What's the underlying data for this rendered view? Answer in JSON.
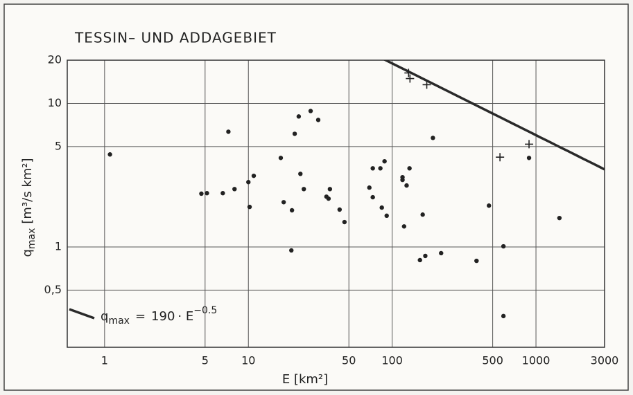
{
  "chart_data": {
    "type": "scatter",
    "title": "TESSIN– UND ADDAGEBIET",
    "xlabel": "E [km²]",
    "ylabel": {
      "symbol": "q",
      "subscript": "max",
      "unit": "[m³/s km²]"
    },
    "xscale": "log",
    "yscale": "log",
    "grid": true,
    "xlim": [
      0.55,
      3000
    ],
    "ylim": [
      0.2,
      20
    ],
    "xticks": [
      1,
      5,
      10,
      50,
      100,
      500,
      1000,
      3000
    ],
    "yticks": [
      {
        "value": 0.5,
        "label": "0,5"
      },
      1,
      5,
      10,
      20
    ],
    "series": [
      {
        "marker": "dot",
        "color": "#222",
        "x": [
          1.09,
          7.26,
          4.71,
          5.15,
          6.64,
          8.01,
          10,
          10.9,
          10.2,
          16.8,
          17.6,
          20.1,
          19.9,
          21.0,
          22.4,
          23.0,
          24.3,
          27.1,
          30.6,
          34.9,
          36.1,
          36.9,
          43.1,
          46.6,
          69.4,
          73.3,
          73.3,
          82.8,
          84.7,
          88.5,
          91.6,
          118,
          118,
          121,
          126,
          132,
          163,
          170,
          156,
          192,
          219,
          386,
          471,
          594,
          594,
          895,
          1456
        ],
        "values": [
          4.41,
          6.35,
          2.35,
          2.37,
          2.37,
          2.53,
          2.83,
          3.13,
          1.9,
          4.17,
          2.05,
          1.8,
          0.946,
          6.14,
          8.11,
          3.23,
          2.53,
          8.85,
          7.67,
          2.24,
          2.17,
          2.53,
          1.82,
          1.49,
          2.59,
          3.53,
          2.22,
          3.53,
          1.88,
          3.95,
          1.65,
          3.06,
          2.93,
          1.39,
          2.68,
          3.53,
          1.68,
          0.866,
          0.81,
          5.75,
          0.905,
          0.8,
          1.94,
          1.01,
          0.33,
          4.17,
          1.59
        ]
      },
      {
        "marker": "cross",
        "color": "#222",
        "x": [
          130,
          133,
          174,
          562,
          895
        ],
        "values": [
          16.3,
          14.9,
          13.5,
          4.22,
          5.2
        ]
      }
    ],
    "line": {
      "coefficient": 190,
      "exponent": {
        "value": -0.5,
        "label": "−0.5"
      },
      "color": "#2a2a2a"
    },
    "legend": {
      "symbol": "q",
      "subscript": "max",
      "equals": "=",
      "times": "· E"
    }
  }
}
